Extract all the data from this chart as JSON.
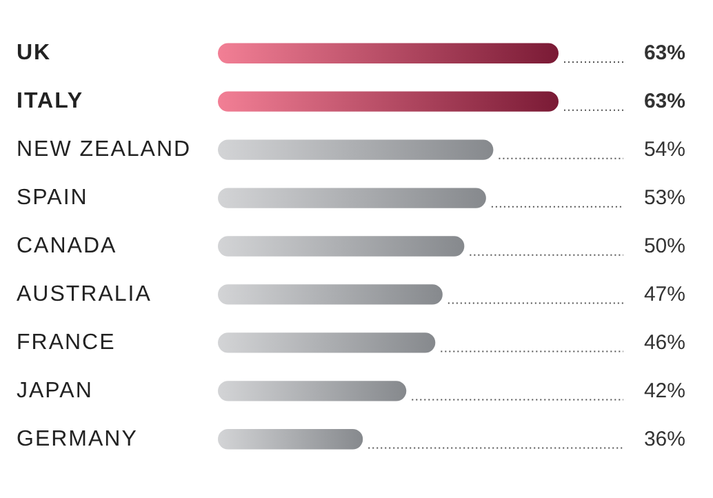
{
  "chart_data": {
    "type": "bar",
    "orientation": "horizontal",
    "categories": [
      "UK",
      "ITALY",
      "NEW ZEALAND",
      "SPAIN",
      "CANADA",
      "AUSTRALIA",
      "FRANCE",
      "JAPAN",
      "GERMANY"
    ],
    "values": [
      63,
      63,
      54,
      53,
      50,
      47,
      46,
      42,
      36
    ],
    "colors": [
      "#7a1a35",
      "#7a1a35",
      "#86898d",
      "#86898d",
      "#86898d",
      "#86898d",
      "#86898d",
      "#86898d",
      "#86898d"
    ],
    "value_labels": [
      "63%",
      "63%",
      "54%",
      "53%",
      "50%",
      "47%",
      "46%",
      "42%",
      "36%"
    ],
    "xlim": [
      16,
      63
    ]
  }
}
